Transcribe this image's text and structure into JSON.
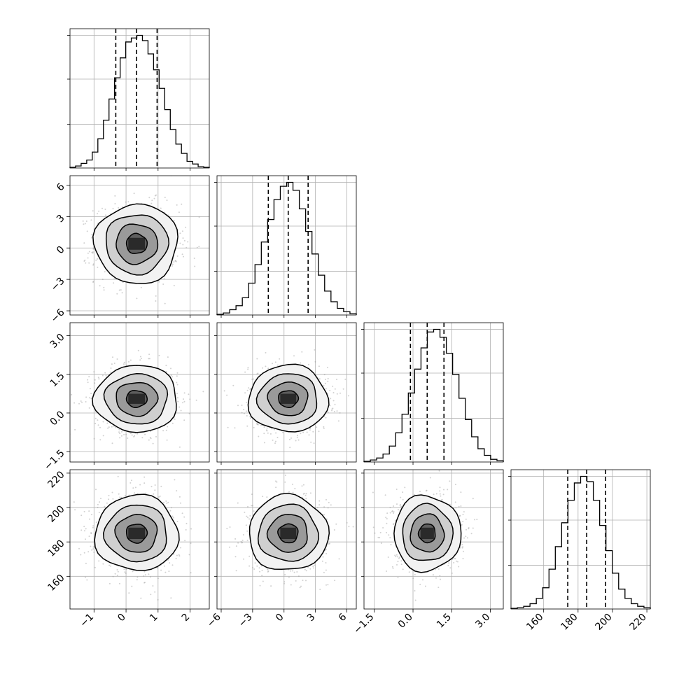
{
  "chart_data": {
    "type": "corner",
    "grid": true,
    "parameters": [
      {
        "index": 0,
        "range": [
          -1.75,
          2.6
        ],
        "ticks": [
          -1,
          0,
          1,
          2
        ],
        "tick_labels": [
          "−1",
          "0",
          "1",
          "2"
        ],
        "quantiles": [
          -0.32,
          0.33,
          0.97
        ],
        "hist_max": 1.0,
        "hist_y_ticks": [
          0.33,
          0.67,
          1.0
        ],
        "hist": [
          0.005,
          0.015,
          0.035,
          0.06,
          0.12,
          0.22,
          0.36,
          0.52,
          0.68,
          0.83,
          0.95,
          0.98,
          1.0,
          0.96,
          0.86,
          0.74,
          0.6,
          0.44,
          0.29,
          0.18,
          0.11,
          0.05,
          0.03,
          0.01,
          0.005
        ]
      },
      {
        "index": 1,
        "range": [
          -6.4,
          6.9
        ],
        "ticks": [
          -6,
          -3,
          0,
          3,
          6
        ],
        "tick_labels": [
          "−6",
          "−3",
          "0",
          "3",
          "6"
        ],
        "quantiles": [
          -1.5,
          0.4,
          2.3
        ],
        "hist_max": 1.0,
        "hist_y_ticks": [
          0.33,
          0.67,
          1.0
        ],
        "hist": [
          0.005,
          0.015,
          0.04,
          0.07,
          0.13,
          0.24,
          0.38,
          0.55,
          0.72,
          0.87,
          0.97,
          1.0,
          0.94,
          0.8,
          0.63,
          0.46,
          0.3,
          0.18,
          0.1,
          0.05,
          0.025,
          0.01
        ]
      },
      {
        "index": 2,
        "range": [
          -1.9,
          3.5
        ],
        "ticks": [
          -1.5,
          0.0,
          1.5,
          3.0
        ],
        "tick_labels": [
          "−1.5",
          "0.0",
          "1.5",
          "3.0"
        ],
        "quantiles": [
          -0.1,
          0.55,
          1.2
        ],
        "hist_max": 1.0,
        "hist_y_ticks": [
          0.33,
          0.67,
          1.0
        ],
        "hist": [
          0.005,
          0.015,
          0.03,
          0.06,
          0.12,
          0.22,
          0.36,
          0.52,
          0.7,
          0.86,
          0.98,
          1.0,
          0.94,
          0.82,
          0.66,
          0.48,
          0.32,
          0.19,
          0.1,
          0.05,
          0.02,
          0.01
        ]
      },
      {
        "index": 3,
        "range": [
          141,
          222
        ],
        "ticks": [
          160,
          180,
          200,
          220
        ],
        "tick_labels": [
          "160",
          "180",
          "200",
          "220"
        ],
        "quantiles": [
          174,
          185,
          196
        ],
        "hist_max": 1.0,
        "hist_y_ticks": [
          0.33,
          0.67,
          1.0
        ],
        "hist": [
          0.005,
          0.01,
          0.02,
          0.04,
          0.08,
          0.16,
          0.3,
          0.47,
          0.65,
          0.82,
          0.95,
          1.0,
          0.96,
          0.82,
          0.63,
          0.44,
          0.27,
          0.15,
          0.08,
          0.04,
          0.02,
          0.01
        ]
      }
    ],
    "pairs": [
      {
        "x": 0,
        "y": 1,
        "center": [
          0.33,
          0.4
        ],
        "sigma": [
          0.65,
          1.9
        ]
      },
      {
        "x": 0,
        "y": 2,
        "center": [
          0.33,
          0.55
        ],
        "sigma": [
          0.65,
          0.65
        ]
      },
      {
        "x": 1,
        "y": 2,
        "center": [
          0.4,
          0.55
        ],
        "sigma": [
          1.9,
          0.65
        ]
      },
      {
        "x": 0,
        "y": 3,
        "center": [
          0.33,
          185
        ],
        "sigma": [
          0.65,
          11
        ]
      },
      {
        "x": 1,
        "y": 3,
        "center": [
          0.4,
          185
        ],
        "sigma": [
          1.9,
          11
        ]
      },
      {
        "x": 2,
        "y": 3,
        "center": [
          0.55,
          185
        ],
        "sigma": [
          0.65,
          11
        ]
      }
    ],
    "contour_levels_sigma": [
      0.5,
      1.0,
      1.5,
      2.0
    ],
    "colors": {
      "line": "#000000",
      "scatter": "#999999",
      "grid": "#b0b0b0",
      "background": "#ffffff"
    }
  }
}
